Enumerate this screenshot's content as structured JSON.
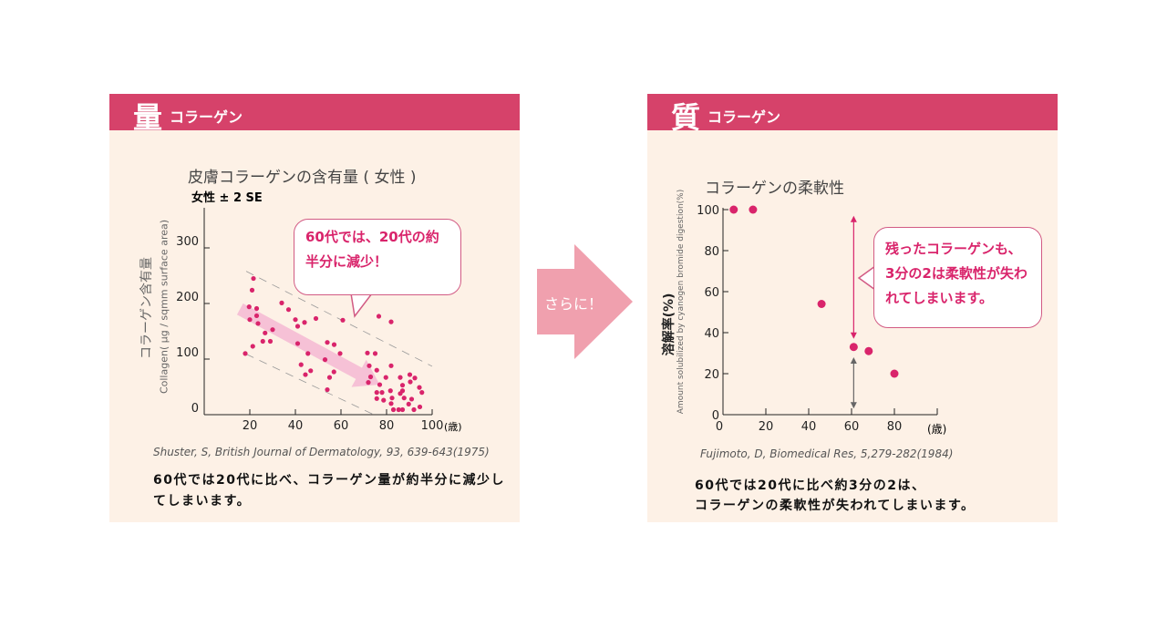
{
  "left": {
    "header_big": "量",
    "header_sub": "コラーゲン",
    "callout": "60代では、20代の約半分に減少！",
    "citation": "Shuster, S, British Journal of Dermatology, 93, 639-643(1975)",
    "description": "60代では20代に比べ、コラーゲン量が約半分に減少してしまいます。"
  },
  "center_arrow": {
    "label": "さらに！",
    "color": "#f0a0ae"
  },
  "right": {
    "header_big": "質",
    "header_sub": "コラーゲン",
    "callout": "残ったコラーゲンも、3分の2は柔軟性が失われてしまいます。",
    "citation": "Fujimoto, D, Biomedical Res, 5,279-282(1984)",
    "description_1": "60代では20代に比べ約3分の2は、",
    "description_2": "コラーゲンの柔軟性が失われてしまいます。"
  },
  "colors": {
    "header": "#d6426a",
    "panel": "#fdf1e6",
    "dot": "#d9246b",
    "arrow_band": "#f5b8d2"
  },
  "chart_data": [
    {
      "type": "scatter",
      "title": "皮膚コラーゲンの含有量 ( 女性 )",
      "subtitle": "女性 ± 2 SE",
      "ylabel_jp": "コラーゲン含有量",
      "ylabel": "Collagen( μg / sqmm surface area)",
      "xunit": "(歳)",
      "xlim": [
        0,
        100
      ],
      "ylim": [
        0,
        350
      ],
      "xticks": [
        20,
        40,
        60,
        80,
        100
      ],
      "yticks": [
        0,
        100,
        200,
        300
      ],
      "points": [
        [
          18,
          110
        ],
        [
          21.6,
          245
        ],
        [
          21,
          224
        ],
        [
          19.7,
          194
        ],
        [
          20,
          171
        ],
        [
          23,
          178
        ],
        [
          23,
          191
        ],
        [
          23.6,
          164
        ],
        [
          21.3,
          123
        ],
        [
          26.7,
          147
        ],
        [
          25.7,
          132
        ],
        [
          29,
          132
        ],
        [
          30,
          153
        ],
        [
          34,
          201
        ],
        [
          37,
          189
        ],
        [
          40,
          171
        ],
        [
          41,
          159
        ],
        [
          44,
          166
        ],
        [
          49,
          173
        ],
        [
          41,
          128
        ],
        [
          45.5,
          110
        ],
        [
          42.5,
          90
        ],
        [
          46.7,
          79
        ],
        [
          44.4,
          72
        ],
        [
          54,
          130
        ],
        [
          57,
          126
        ],
        [
          59.6,
          110
        ],
        [
          53,
          99
        ],
        [
          55,
          67
        ],
        [
          56.9,
          77
        ],
        [
          54,
          45
        ],
        [
          60.8,
          170
        ],
        [
          71.6,
          111
        ],
        [
          75,
          110
        ],
        [
          72.4,
          88
        ],
        [
          73,
          68
        ],
        [
          72,
          58
        ],
        [
          75.7,
          80
        ],
        [
          76.6,
          177
        ],
        [
          82,
          167
        ],
        [
          82,
          88
        ],
        [
          77,
          54
        ],
        [
          79.7,
          67
        ],
        [
          75.7,
          40
        ],
        [
          78,
          40
        ],
        [
          75.7,
          29
        ],
        [
          78.7,
          26
        ],
        [
          81.7,
          43
        ],
        [
          82.4,
          30
        ],
        [
          82,
          20
        ],
        [
          83,
          9
        ],
        [
          86,
          67
        ],
        [
          87,
          53
        ],
        [
          87,
          43
        ],
        [
          86,
          38
        ],
        [
          87.7,
          30
        ],
        [
          87,
          9
        ],
        [
          90.2,
          72
        ],
        [
          92.4,
          66
        ],
        [
          90.4,
          59
        ],
        [
          91,
          28
        ],
        [
          89.7,
          19
        ],
        [
          92,
          9
        ],
        [
          94.4,
          49
        ],
        [
          95.5,
          40
        ],
        [
          94.6,
          14
        ],
        [
          85.3,
          9
        ]
      ],
      "band_upper": [
        [
          18.4,
          258
        ],
        [
          100,
          87
        ]
      ],
      "band_lower": [
        [
          18.4,
          109
        ],
        [
          74.4,
          0
        ]
      ],
      "trend_arrow": [
        [
          15.7,
          190
        ],
        [
          77,
          54
        ]
      ]
    },
    {
      "type": "scatter",
      "title": "コラーゲンの柔軟性",
      "ylabel_jp": "溶解率(%)",
      "ylabel": "Amount solubilized by cyanogen bromide digestion(%)",
      "xunit": "(歳)",
      "xlim": [
        0,
        100
      ],
      "ylim": [
        0,
        100
      ],
      "xticks": [
        0,
        20,
        40,
        60,
        80
      ],
      "yticks": [
        0,
        20,
        40,
        60,
        80,
        100
      ],
      "points": [
        [
          5,
          100
        ],
        [
          14,
          100
        ],
        [
          46,
          54
        ],
        [
          61,
          33
        ],
        [
          68,
          31
        ],
        [
          80,
          20
        ]
      ],
      "arrow_lost": [
        61,
        97,
        37
      ],
      "arrow_remaining": [
        61,
        28,
        3
      ]
    }
  ]
}
